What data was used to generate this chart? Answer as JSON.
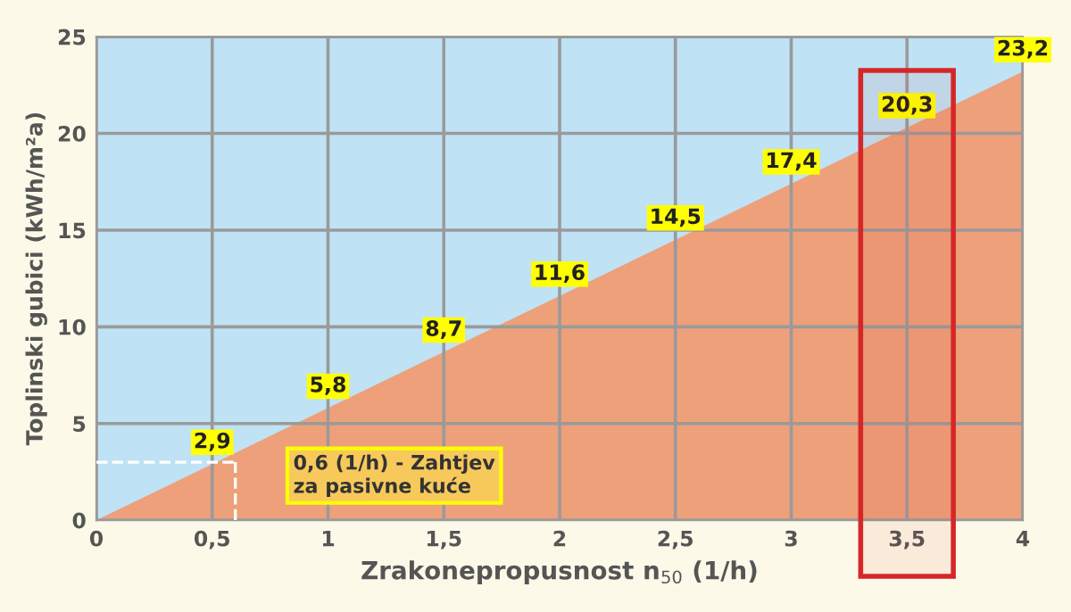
{
  "chart_data": {
    "type": "area",
    "xlabel": "Zrakonepropusnost n$_{50}$ (1/h)",
    "ylabel": "Toplinski gubici (kWh/m²a)",
    "x": [
      0,
      0.5,
      1,
      1.5,
      2,
      2.5,
      3,
      3.5,
      4
    ],
    "series": [
      {
        "color": "#eda07a",
        "values": [
          0,
          2.9,
          5.8,
          8.7,
          11.6,
          14.5,
          17.4,
          20.3,
          23.2
        ],
        "value_labels": [
          null,
          "2,9",
          "5,8",
          "8,7",
          "11,6",
          "14,5",
          "17,4",
          "20,3",
          "23,2"
        ]
      }
    ],
    "xlim": [
      0,
      4
    ],
    "ylim": [
      0,
      25
    ],
    "xticks": [
      0,
      {
        "value": 0.5,
        "label": "0,5"
      },
      1,
      {
        "value": 1.5,
        "label": "1,5"
      },
      2,
      {
        "value": 2.5,
        "label": "2,5"
      },
      3,
      {
        "value": 3.5,
        "label": "3,5"
      },
      4
    ],
    "yticks": [
      0,
      5,
      10,
      15,
      20,
      25
    ],
    "grid": true,
    "ref_lines": [
      {
        "axis": "y",
        "value": 3,
        "label": null,
        "color": "#ffffff",
        "line_style": "dashed"
      },
      {
        "axis": "x",
        "value": 0.6,
        "label": null,
        "color": "#ffffff",
        "line_style": "dashed"
      }
    ],
    "bands": [
      {
        "axis": "x",
        "from": 3.3,
        "to": 3.7,
        "label": null,
        "color": "#d62728"
      }
    ],
    "annotations": [
      {
        "text": "0,6 (1/h) - Zahtjev\nza pasivne kuće",
        "x": 0.6,
        "y": 3
      }
    ]
  }
}
